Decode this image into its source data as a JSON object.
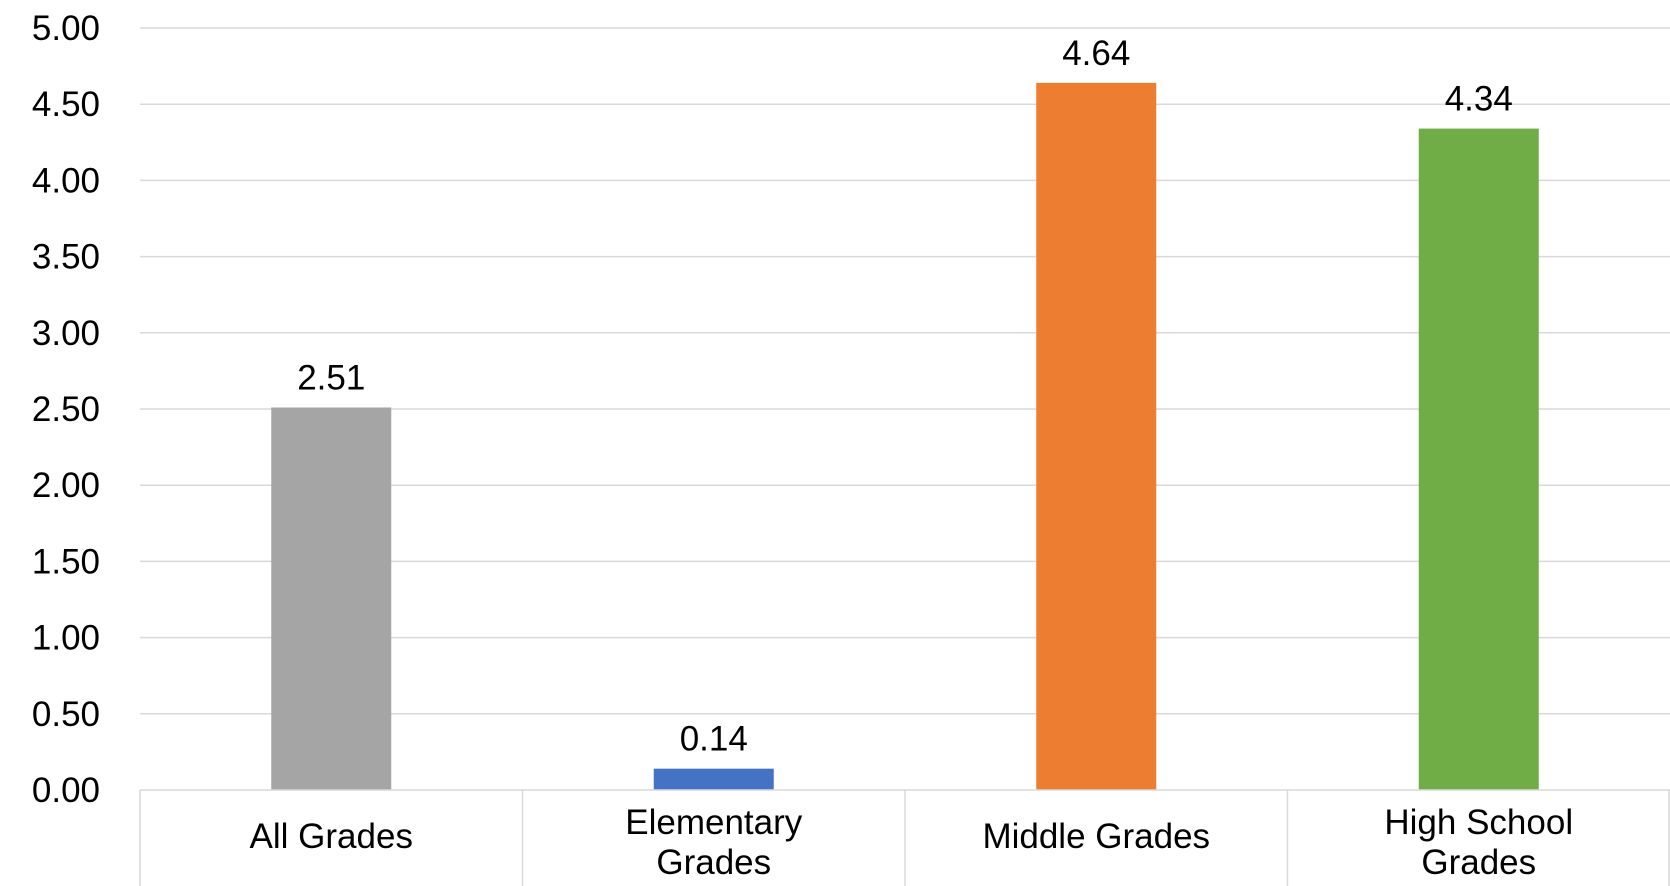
{
  "chart_data": {
    "type": "bar",
    "categories": [
      "All Grades",
      "Elementary Grades",
      "Middle Grades",
      "High School Grades"
    ],
    "category_lines": [
      [
        "All Grades"
      ],
      [
        "Elementary",
        "Grades"
      ],
      [
        "Middle Grades"
      ],
      [
        "High School",
        "Grades"
      ]
    ],
    "values": [
      2.51,
      0.14,
      4.64,
      4.34
    ],
    "data_labels": [
      "2.51",
      "0.14",
      "4.64",
      "4.34"
    ],
    "colors": [
      "#a5a5a5",
      "#4472c4",
      "#ed7d31",
      "#70ad47"
    ],
    "ylim": [
      0,
      5
    ],
    "yticks": [
      "0.00",
      "0.50",
      "1.00",
      "1.50",
      "2.00",
      "2.50",
      "3.00",
      "3.50",
      "4.00",
      "4.50",
      "5.00"
    ],
    "ytick_values": [
      0,
      0.5,
      1,
      1.5,
      2,
      2.5,
      3,
      3.5,
      4,
      4.5,
      5
    ],
    "grid": true,
    "legend": "none",
    "title": "",
    "xlabel": "",
    "ylabel": ""
  }
}
